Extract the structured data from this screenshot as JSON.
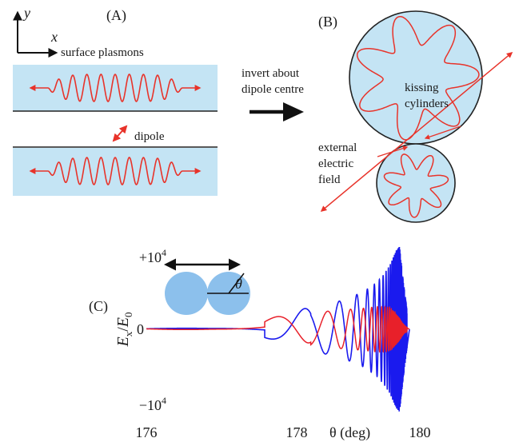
{
  "panel_a": {
    "label": "(A)",
    "axis_y": "y",
    "axis_x": "x",
    "surface_plasmons": "surface plasmons",
    "dipole": "dipole"
  },
  "arrow_caption": {
    "line1": "invert about",
    "line2": "dipole centre"
  },
  "panel_b": {
    "label": "(B)",
    "kissing_line1": "kissing",
    "kissing_line2": "cylinders",
    "field_line1": "external",
    "field_line2": "electric",
    "field_line3": "field"
  },
  "panel_c": {
    "label": "(C)",
    "theta_symbol": "θ",
    "ylabel": "E_x/E_0",
    "xlabel": "θ (deg)",
    "ytick_top": "+10^4",
    "ytick_mid": "0",
    "ytick_bottom": "−10^4",
    "xtick_176": "176",
    "xtick_178": "178",
    "xtick_180": "180"
  },
  "colors": {
    "slab_fill": "#c4e4f4",
    "wave": "#e8332a",
    "disk_fill": "#8cc0ec",
    "series_blue": "#1a1aee",
    "series_red": "#e8202a"
  },
  "chart_data": {
    "type": "line",
    "xlabel": "θ (deg)",
    "ylabel": "E_x/E_0",
    "xlim": [
      176,
      180
    ],
    "ylim": [
      -10000,
      10000
    ],
    "x_ticks": [
      176,
      178,
      180
    ],
    "y_ticks": [
      -10000,
      0,
      10000
    ],
    "series": [
      {
        "color": "#1a1aee",
        "description_model": "oscillation with growing amplitude and decreasing period approaching theta = 180",
        "x": [
          176.0,
          177.0,
          177.5,
          178.0,
          178.5,
          179.0,
          179.3,
          179.5,
          179.6,
          179.7,
          179.75,
          179.8,
          179.85,
          179.9,
          180.0
        ],
        "envelope": [
          1200,
          500,
          700,
          1600,
          2800,
          3900,
          5000,
          6200,
          7200,
          8500,
          9500,
          10500,
          11000,
          7000,
          0
        ]
      },
      {
        "color": "#e8202a",
        "description_model": "oscillation with growing amplitude and decreasing period approaching theta = 180",
        "x": [
          176.0,
          177.0,
          177.5,
          178.0,
          178.5,
          179.0,
          179.3,
          179.5,
          179.6,
          179.7,
          179.75,
          179.8,
          179.85,
          179.9,
          180.0
        ],
        "envelope": [
          1500,
          400,
          600,
          1500,
          2200,
          2600,
          2800,
          3000,
          3000,
          2900,
          2500,
          2000,
          1500,
          800,
          0
        ]
      }
    ]
  }
}
